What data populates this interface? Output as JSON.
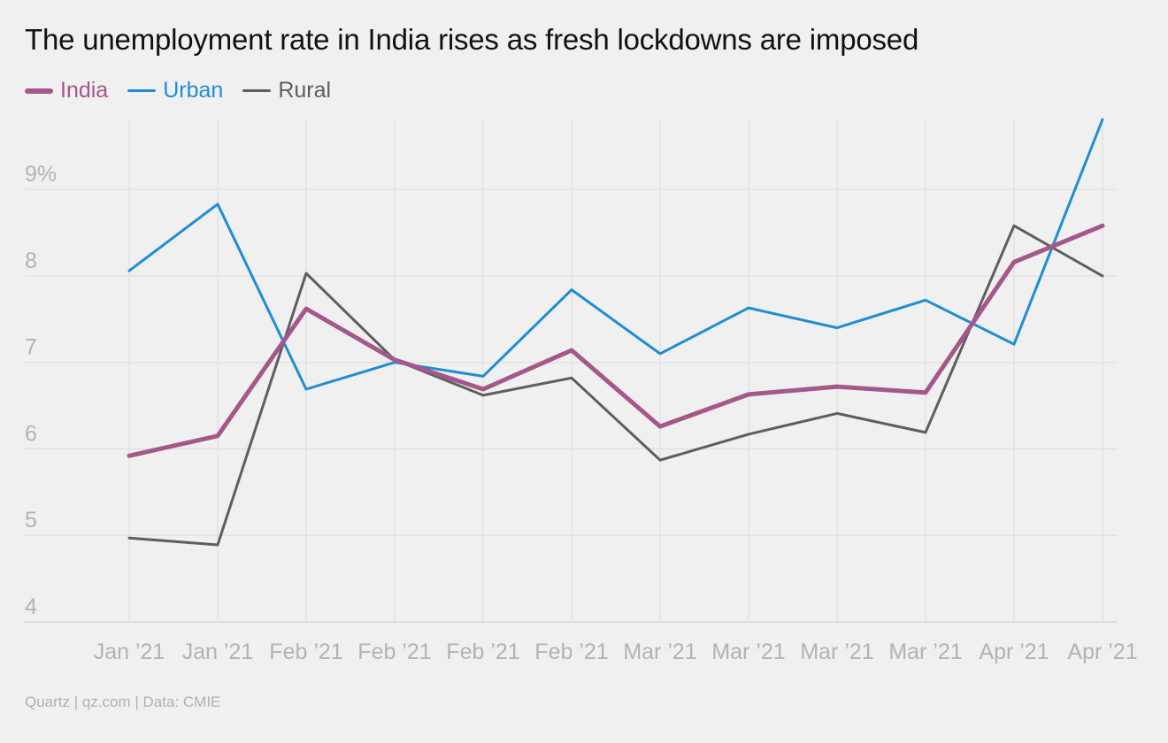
{
  "chart_data": {
    "type": "line",
    "title": "The unemployment rate in India rises as fresh lockdowns are imposed",
    "categories": [
      "Jan ’21",
      "Jan ’21",
      "Feb ’21",
      "Feb ’21",
      "Feb ’21",
      "Feb ’21",
      "Mar ’21",
      "Mar ’21",
      "Mar ’21",
      "Mar ’21",
      "Apr ’21",
      "Apr ’21"
    ],
    "series": [
      {
        "name": "India",
        "color": "#a5578a",
        "values": [
          5.92,
          6.15,
          7.62,
          7.03,
          6.69,
          7.14,
          6.26,
          6.63,
          6.72,
          6.65,
          8.16,
          8.58
        ]
      },
      {
        "name": "Urban",
        "color": "#1f8dd6",
        "values": [
          8.06,
          8.83,
          6.69,
          7.0,
          6.84,
          7.84,
          7.1,
          7.63,
          7.4,
          7.72,
          7.21,
          9.81
        ]
      },
      {
        "name": "Rural",
        "color": "#5e5e5e",
        "values": [
          4.97,
          4.89,
          8.03,
          7.03,
          6.62,
          6.82,
          5.87,
          6.17,
          6.41,
          6.19,
          8.58,
          8.0
        ]
      }
    ],
    "yticks": [
      "4",
      "5",
      "6",
      "7",
      "8",
      "9%"
    ],
    "ytick_values": [
      4,
      5,
      6,
      7,
      8,
      9
    ],
    "ylim": [
      4,
      9.81
    ],
    "grid": true,
    "legend_position": "top-left"
  },
  "source": "Quartz | qz.com | Data: CMIE"
}
